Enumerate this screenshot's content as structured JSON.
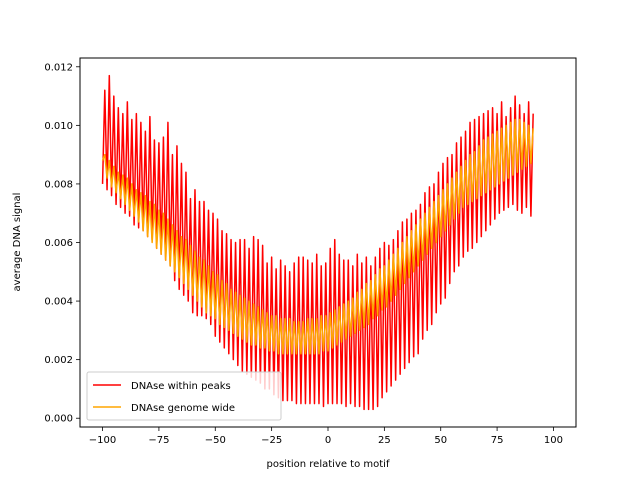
{
  "chart_data": {
    "type": "line",
    "title": "",
    "xlabel": "position relative to motif",
    "ylabel": "average DNA signal",
    "xlim": [
      -110,
      110
    ],
    "ylim": [
      -0.0003,
      0.0123
    ],
    "grid": false,
    "legend_position": "bottom-left",
    "x_ticks": [
      -100,
      -75,
      -50,
      -25,
      0,
      25,
      50,
      75,
      100
    ],
    "x_tick_labels": [
      "−100",
      "−75",
      "−50",
      "−25",
      "0",
      "25",
      "50",
      "75",
      "100"
    ],
    "y_ticks": [
      0.0,
      0.002,
      0.004,
      0.006,
      0.008,
      0.01,
      0.012
    ],
    "y_tick_labels": [
      "0.000",
      "0.002",
      "0.004",
      "0.006",
      "0.008",
      "0.010",
      "0.012"
    ],
    "x_start": -100,
    "x_step": 1,
    "series": [
      {
        "name": "DNAse within peaks",
        "color": "#ff0000",
        "values": [
          0.008,
          0.0112,
          0.0078,
          0.0117,
          0.0076,
          0.011,
          0.0073,
          0.0106,
          0.0072,
          0.0104,
          0.007,
          0.0108,
          0.0069,
          0.0102,
          0.0066,
          0.0104,
          0.0065,
          0.0101,
          0.0064,
          0.0098,
          0.0062,
          0.0103,
          0.0061,
          0.0095,
          0.0058,
          0.0094,
          0.0056,
          0.0096,
          0.0054,
          0.0101,
          0.0052,
          0.009,
          0.0047,
          0.0093,
          0.0044,
          0.0087,
          0.0042,
          0.0084,
          0.004,
          0.0075,
          0.0036,
          0.0078,
          0.0035,
          0.0074,
          0.0035,
          0.0074,
          0.0034,
          0.0071,
          0.0032,
          0.007,
          0.0028,
          0.0068,
          0.0026,
          0.0064,
          0.0024,
          0.0063,
          0.0022,
          0.0061,
          0.002,
          0.006,
          0.0018,
          0.0061,
          0.0016,
          0.0061,
          0.0015,
          0.0058,
          0.0014,
          0.0062,
          0.0013,
          0.0061,
          0.0012,
          0.0059,
          0.001,
          0.0053,
          0.001,
          0.0055,
          0.0008,
          0.0051,
          0.0007,
          0.0054,
          0.0006,
          0.0052,
          0.0006,
          0.005,
          0.0006,
          0.0053,
          0.0005,
          0.0055,
          0.0005,
          0.0055,
          0.0005,
          0.0054,
          0.0005,
          0.0053,
          0.0005,
          0.0056,
          0.0005,
          0.0052,
          0.0004,
          0.0053,
          0.0005,
          0.0058,
          0.0005,
          0.0061,
          0.0005,
          0.0056,
          0.0005,
          0.0054,
          0.0004,
          0.0054,
          0.0005,
          0.0052,
          0.0004,
          0.0056,
          0.0004,
          0.0053,
          0.0003,
          0.0055,
          0.0003,
          0.0052,
          0.0003,
          0.0055,
          0.0004,
          0.0058,
          0.0007,
          0.006,
          0.0009,
          0.0059,
          0.0011,
          0.0061,
          0.0013,
          0.0064,
          0.0015,
          0.0067,
          0.0017,
          0.0068,
          0.0019,
          0.007,
          0.0021,
          0.0071,
          0.0022,
          0.0073,
          0.0027,
          0.0077,
          0.003,
          0.0079,
          0.0032,
          0.008,
          0.0036,
          0.0084,
          0.0039,
          0.0087,
          0.0041,
          0.0089,
          0.0046,
          0.009,
          0.005,
          0.0094,
          0.0052,
          0.0096,
          0.0055,
          0.0098,
          0.0057,
          0.0101,
          0.0058,
          0.0102,
          0.006,
          0.0103,
          0.0062,
          0.0104,
          0.0064,
          0.0105,
          0.0066,
          0.0106,
          0.0068,
          0.0104,
          0.007,
          0.0108,
          0.0071,
          0.0103,
          0.0072,
          0.0106,
          0.0073,
          0.011,
          0.0071,
          0.0107,
          0.007,
          0.0104,
          0.0072,
          0.0108,
          0.0069,
          0.0104
        ]
      },
      {
        "name": "DNAse genome wide",
        "color": "#ffa500",
        "values": [
          0.0088,
          0.009,
          0.0082,
          0.0088,
          0.0079,
          0.0086,
          0.0077,
          0.0084,
          0.0075,
          0.0083,
          0.0073,
          0.0082,
          0.0071,
          0.008,
          0.0069,
          0.0078,
          0.0067,
          0.0077,
          0.0064,
          0.0076,
          0.0062,
          0.0074,
          0.006,
          0.0073,
          0.0058,
          0.0071,
          0.0056,
          0.007,
          0.0054,
          0.0068,
          0.0052,
          0.0066,
          0.005,
          0.0064,
          0.0048,
          0.0062,
          0.0046,
          0.0061,
          0.0044,
          0.0059,
          0.0042,
          0.0057,
          0.004,
          0.0055,
          0.0038,
          0.0054,
          0.0036,
          0.0052,
          0.0035,
          0.005,
          0.0034,
          0.0049,
          0.0032,
          0.0047,
          0.0031,
          0.0046,
          0.003,
          0.0044,
          0.0029,
          0.0043,
          0.0028,
          0.0042,
          0.0027,
          0.0041,
          0.0026,
          0.004,
          0.0025,
          0.0039,
          0.0025,
          0.0038,
          0.0024,
          0.0037,
          0.0024,
          0.0036,
          0.0023,
          0.0035,
          0.0023,
          0.0035,
          0.0022,
          0.0034,
          0.0022,
          0.0034,
          0.0022,
          0.0034,
          0.0022,
          0.0033,
          0.0022,
          0.0033,
          0.0022,
          0.0033,
          0.0022,
          0.0034,
          0.0022,
          0.0034,
          0.0022,
          0.0034,
          0.0022,
          0.0035,
          0.0023,
          0.0035,
          0.0023,
          0.0036,
          0.0024,
          0.0037,
          0.0025,
          0.0038,
          0.0026,
          0.0039,
          0.0027,
          0.004,
          0.0028,
          0.0041,
          0.0029,
          0.0043,
          0.003,
          0.0044,
          0.0031,
          0.0046,
          0.0032,
          0.0047,
          0.0034,
          0.0049,
          0.0035,
          0.0051,
          0.0037,
          0.0052,
          0.0038,
          0.0054,
          0.004,
          0.0056,
          0.0042,
          0.0058,
          0.0044,
          0.006,
          0.0046,
          0.0062,
          0.0048,
          0.0064,
          0.005,
          0.0066,
          0.0052,
          0.0068,
          0.0054,
          0.007,
          0.0056,
          0.0072,
          0.0058,
          0.0074,
          0.006,
          0.0076,
          0.0062,
          0.0078,
          0.0064,
          0.008,
          0.0066,
          0.0082,
          0.0068,
          0.0084,
          0.007,
          0.0086,
          0.0072,
          0.0088,
          0.0073,
          0.009,
          0.0074,
          0.0091,
          0.0075,
          0.0093,
          0.0076,
          0.0095,
          0.0077,
          0.0096,
          0.0078,
          0.0097,
          0.0079,
          0.0098,
          0.008,
          0.0099,
          0.0081,
          0.01,
          0.0082,
          0.0101,
          0.0083,
          0.0102,
          0.0084,
          0.0102,
          0.0085,
          0.0101,
          0.0086,
          0.01,
          0.0087,
          0.0099
        ]
      }
    ]
  }
}
